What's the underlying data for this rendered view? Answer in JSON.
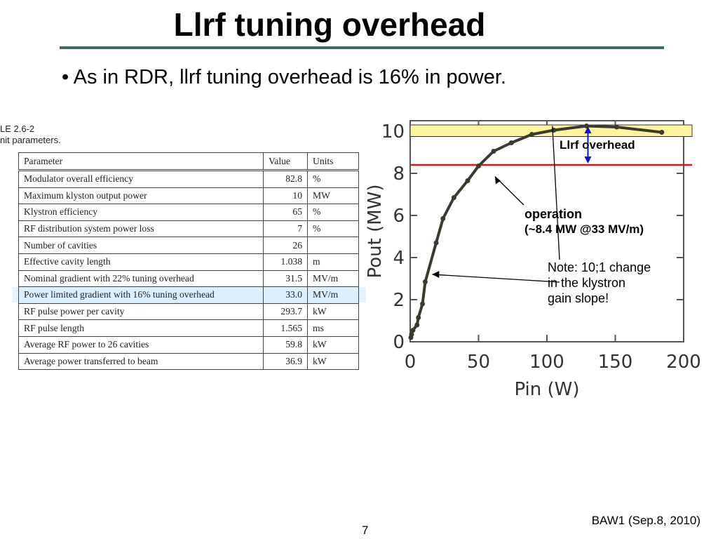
{
  "slide": {
    "title": "Llrf tuning overhead",
    "bullet": "• As in RDR, llrf tuning overhead is 16% in power.",
    "table_caption_line1": "LE 2.6-2",
    "table_caption_line2": "nit parameters.",
    "footer": "BAW1 (Sep.8, 2010)",
    "page_number": "7"
  },
  "table": {
    "headers": [
      "Parameter",
      "Value",
      "Units"
    ],
    "rows": [
      [
        "Modulator overall efficiency",
        "82.8",
        "%"
      ],
      [
        "Maximum klyston output power",
        "10",
        "MW"
      ],
      [
        "Klystron efficiency",
        "65",
        "%"
      ],
      [
        "RF distribution system power loss",
        "7",
        "%"
      ],
      [
        "Number of cavities",
        "26",
        ""
      ],
      [
        "Effective cavity length",
        "1.038",
        "m"
      ],
      [
        "Nominal gradient with 22% tuning overhead",
        "31.5",
        "MV/m"
      ],
      [
        "Power limited gradient with 16% tuning overhead",
        "33.0",
        "MV/m"
      ],
      [
        "RF pulse power per cavity",
        "293.7",
        "kW"
      ],
      [
        "RF pulse length",
        "1.565",
        "ms"
      ],
      [
        "Average RF power to 26 cavities",
        "59.8",
        "kW"
      ],
      [
        "Average power transferred to beam",
        "36.9",
        "kW"
      ]
    ],
    "highlight_row": 7
  },
  "annotations": {
    "llrf_overhead": "Llrf overhead",
    "operation_line1": "operation",
    "operation_line2": "(~8.4 MW @33 MV/m)",
    "note_line1": "Note: 10;1 change",
    "note_line2": "in the klystron",
    "note_line3": "gain slope!"
  },
  "chart_data": {
    "type": "line",
    "xlabel": "Pin (W)",
    "ylabel": "Pout (MW)",
    "xlim": [
      0,
      200
    ],
    "ylim": [
      0,
      10.5
    ],
    "xticks": [
      0,
      50,
      100,
      150,
      200
    ],
    "yticks": [
      0,
      2,
      4,
      6,
      8,
      10
    ],
    "series": [
      {
        "x": [
          0.5,
          1,
          2,
          5,
          6,
          9,
          11,
          19,
          24,
          32,
          42,
          50,
          61,
          74,
          89,
          105,
          129,
          151,
          184
        ],
        "y": [
          0.2,
          0.35,
          0.55,
          0.8,
          1.15,
          1.8,
          2.85,
          4.7,
          5.85,
          6.85,
          7.65,
          8.35,
          9.05,
          9.45,
          9.85,
          10.05,
          10.25,
          10.2,
          9.95
        ]
      }
    ],
    "operation_level": 8.4,
    "overhead_band": [
      9.75,
      10.3
    ],
    "colors": {
      "curve": "#3a3a2e",
      "operation_line": "#e01010",
      "band_fill": "#fff59d",
      "band_stroke": "#333333",
      "overhead_arrow": "#1010d0"
    }
  }
}
